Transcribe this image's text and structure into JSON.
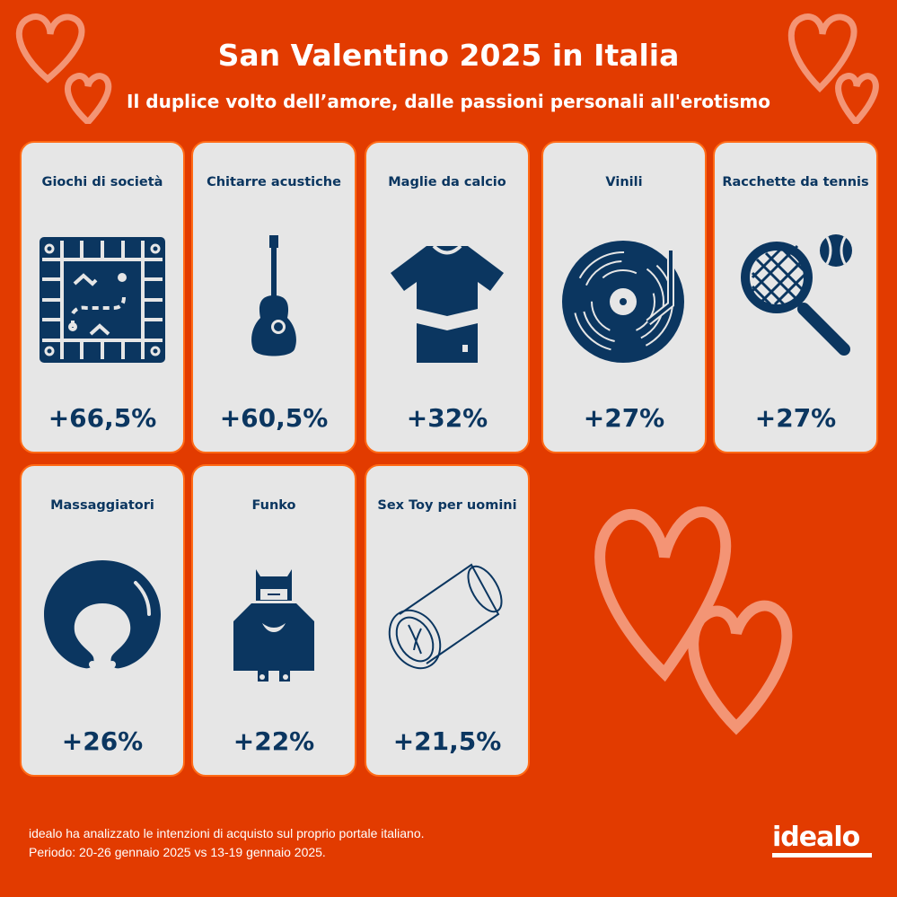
{
  "header": {
    "title": "San Valentino 2025 in Italia",
    "subtitle": "Il duplice volto dell’amore, dalle passioni personali all'erotismo"
  },
  "cards": [
    {
      "label": "Giochi di società",
      "value": "+66,5%",
      "icon": "board-game-icon"
    },
    {
      "label": "Chitarre acustiche",
      "value": "+60,5%",
      "icon": "acoustic-guitar-icon"
    },
    {
      "label": "Maglie da calcio",
      "value": "+32%",
      "icon": "football-shirt-icon"
    },
    {
      "label": "Vinili",
      "value": "+27%",
      "icon": "vinyl-record-icon"
    },
    {
      "label": "Racchette da tennis",
      "value": "+27%",
      "icon": "tennis-racket-icon"
    },
    {
      "label": "Massaggiatori",
      "value": "+26%",
      "icon": "neck-massager-icon"
    },
    {
      "label": "Funko",
      "value": "+22%",
      "icon": "batman-funko-icon"
    },
    {
      "label": "Sex Toy per uomini",
      "value": "+21,5%",
      "icon": "sex-toy-icon"
    }
  ],
  "footer": {
    "line1": "idealo ha analizzato le intenzioni di acquisto sul proprio portale italiano.",
    "line2": "Periodo: 20-26 gennaio 2025 vs 13-19 gennaio 2025.",
    "logo": "idealo"
  },
  "colors": {
    "background": "#e23b00",
    "card": "#e6e6e6",
    "card_border": "#ff6a16",
    "navy": "#0b3660"
  }
}
